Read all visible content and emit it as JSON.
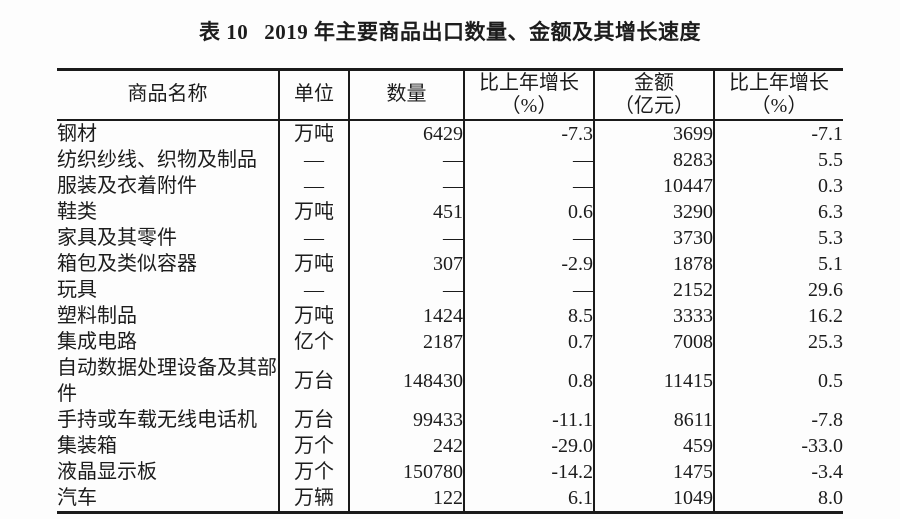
{
  "title": {
    "label": "表 10",
    "text": "2019 年主要商品出口数量、金额及其增长速度"
  },
  "colors": {
    "background": "#fdfdfd",
    "text": "#1c1c1c",
    "border": "#1b1b1b"
  },
  "table": {
    "headers": [
      {
        "line1": "商品名称",
        "line2": ""
      },
      {
        "line1": "单位",
        "line2": ""
      },
      {
        "line1": "数量",
        "line2": ""
      },
      {
        "line1": "比上年增长",
        "line2": "（%）"
      },
      {
        "line1": "金额",
        "line2": "（亿元）"
      },
      {
        "line1": "比上年增长",
        "line2": "（%）"
      }
    ],
    "rows": [
      {
        "name": "钢材",
        "unit": "万吨",
        "qty": "6429",
        "qty_growth": "-7.3",
        "value": "3699",
        "value_growth": "-7.1"
      },
      {
        "name": "纺织纱线、织物及制品",
        "unit": "—",
        "qty": "—",
        "qty_growth": "—",
        "value": "8283",
        "value_growth": "5.5"
      },
      {
        "name": "服装及衣着附件",
        "unit": "—",
        "qty": "—",
        "qty_growth": "—",
        "value": "10447",
        "value_growth": "0.3"
      },
      {
        "name": "鞋类",
        "unit": "万吨",
        "qty": "451",
        "qty_growth": "0.6",
        "value": "3290",
        "value_growth": "6.3"
      },
      {
        "name": "家具及其零件",
        "unit": "—",
        "qty": "—",
        "qty_growth": "—",
        "value": "3730",
        "value_growth": "5.3"
      },
      {
        "name": "箱包及类似容器",
        "unit": "万吨",
        "qty": "307",
        "qty_growth": "-2.9",
        "value": "1878",
        "value_growth": "5.1"
      },
      {
        "name": "玩具",
        "unit": "—",
        "qty": "—",
        "qty_growth": "—",
        "value": "2152",
        "value_growth": "29.6"
      },
      {
        "name": "塑料制品",
        "unit": "万吨",
        "qty": "1424",
        "qty_growth": "8.5",
        "value": "3333",
        "value_growth": "16.2"
      },
      {
        "name": "集成电路",
        "unit": "亿个",
        "qty": "2187",
        "qty_growth": "0.7",
        "value": "7008",
        "value_growth": "25.3"
      },
      {
        "name": "自动数据处理设备及其部件",
        "unit": "万台",
        "qty": "148430",
        "qty_growth": "0.8",
        "value": "11415",
        "value_growth": "0.5"
      },
      {
        "name": "手持或车载无线电话机",
        "unit": "万台",
        "qty": "99433",
        "qty_growth": "-11.1",
        "value": "8611",
        "value_growth": "-7.8"
      },
      {
        "name": "集装箱",
        "unit": "万个",
        "qty": "242",
        "qty_growth": "-29.0",
        "value": "459",
        "value_growth": "-33.0"
      },
      {
        "name": "液晶显示板",
        "unit": "万个",
        "qty": "150780",
        "qty_growth": "-14.2",
        "value": "1475",
        "value_growth": "-3.4"
      },
      {
        "name": "汽车",
        "unit": "万辆",
        "qty": "122",
        "qty_growth": "6.1",
        "value": "1049",
        "value_growth": "8.0"
      }
    ]
  }
}
